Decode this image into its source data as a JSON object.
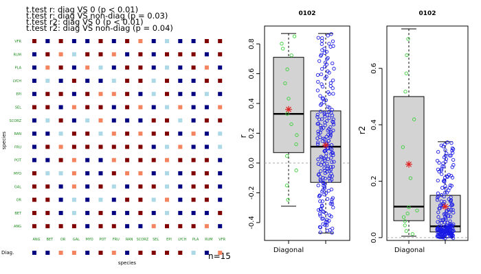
{
  "chart_data": [
    {
      "type": "heatmap",
      "stat_lines": [
        "t.test r: diag VS 0 (p < 0.01)",
        "t.test r: diag VS non-diag (p = 0.03)",
        "t.test r2: diag VS 0 (p < 0.01)",
        "t.test r2: diag VS non-diag (p = 0.04)"
      ],
      "row_labels": [
        "VFR",
        "RUM",
        "PLA",
        "LYCH",
        "EPI",
        "SEL",
        "SCORZ",
        "RAN",
        "FRU",
        "POT",
        "MYO",
        "GAL",
        "OR",
        "BET",
        "ANG"
      ],
      "col_labels": [
        "ANG",
        "BET",
        "OR",
        "GAL",
        "MYO",
        "POT",
        "FRU",
        "RAN",
        "SCORZ",
        "SEL",
        "EPI",
        "LYCH",
        "PLA",
        "RUM",
        "VFR"
      ],
      "ylabel": "species",
      "xlabel": "species",
      "diag_label": "Diag.",
      "n_label": "n=15",
      "palette": {
        "A": "#800000",
        "B": "#000080",
        "C": "#f4845f",
        "D": "#add8e6"
      },
      "cells": [
        "ABABBABACBDBBAA",
        "BACDAACBABAAABA",
        "BCABCDBAABDBACB",
        "BDBABBDAADABBAA",
        "BAABACCABDABBDB",
        "AABCAABACBDCBBC",
        "BDABDCBBBAADBAA",
        "BBDAADCACAABCBD",
        "BACAAAAAABDCBBD",
        "BBACBBCAAACAAAB",
        "ADDCBBACCBDBAAB",
        "AABCBADBAADBAAB",
        "AABDBDBAADCBAAB",
        "AABDBABBABDBBBA",
        "AAAABAABBCAAACB"
      ],
      "diag_row": "BBCCBACBAAAADBC"
    },
    {
      "type": "box",
      "title": "0102",
      "ylabel": "r",
      "ylim": [
        -0.52,
        0.92
      ],
      "yticks": [
        -0.4,
        -0.2,
        0.0,
        0.2,
        0.4,
        0.6,
        0.8
      ],
      "reference_line": 0.0,
      "categories": [
        "Diagonal",
        ""
      ],
      "boxes": [
        {
          "min": -0.29,
          "q1": 0.07,
          "median": 0.33,
          "q3": 0.71,
          "max": 0.87,
          "mean": 0.36,
          "n": 15,
          "point_color": "#3ad13a"
        },
        {
          "min": -0.47,
          "q1": -0.13,
          "median": 0.11,
          "q3": 0.35,
          "max": 0.87,
          "mean": 0.12,
          "n": 210,
          "point_color": "#1a1ae6"
        }
      ]
    },
    {
      "type": "box",
      "title": "0102",
      "ylabel": "r2",
      "ylim": [
        -0.01,
        0.75
      ],
      "yticks": [
        0.0,
        0.2,
        0.4,
        0.6
      ],
      "reference_line": 0.0,
      "categories": [
        "Diagonal",
        ""
      ],
      "boxes": [
        {
          "min": 0.005,
          "q1": 0.06,
          "median": 0.11,
          "q3": 0.5,
          "max": 0.74,
          "mean": 0.26,
          "n": 15,
          "point_color": "#3ad13a"
        },
        {
          "min": 0.0,
          "q1": 0.02,
          "median": 0.04,
          "q3": 0.15,
          "max": 0.34,
          "mean": 0.11,
          "n": 210,
          "point_color": "#1a1ae6"
        }
      ]
    }
  ]
}
